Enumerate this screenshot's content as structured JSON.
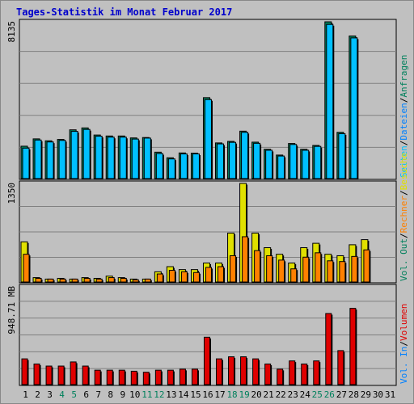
{
  "title": "Tages-Statistik im Monat Februar 2017",
  "colors": {
    "background": "#c0c0c0",
    "title": "#0000cc",
    "anfragen": "#00805c",
    "dateien": "#0080ff",
    "seiten": "#00c0ff",
    "besuche": "#e0e000",
    "rechner": "#ff8000",
    "vol_out": "#00805c",
    "vol_in": "#0080ff",
    "volumen": "#e00000",
    "weekend_label": "#00805c"
  },
  "chart_data": [
    {
      "type": "bar",
      "name": "top",
      "ymax_label": "8135",
      "ylim": [
        0,
        8135
      ],
      "x": [
        "1",
        "2",
        "3",
        "4",
        "5",
        "6",
        "7",
        "8",
        "9",
        "10",
        "11",
        "12",
        "13",
        "14",
        "15",
        "16",
        "17",
        "18",
        "19",
        "20",
        "21",
        "22",
        "23",
        "24",
        "25",
        "26",
        "27",
        "28",
        "29",
        "30",
        "31"
      ],
      "weekend_days": [
        "4",
        "5",
        "11",
        "12",
        "18",
        "19",
        "25",
        "26"
      ],
      "legend": [
        "Anfragen",
        "Dateien",
        "Seiten"
      ],
      "series": [
        {
          "name": "Anfragen",
          "values": [
            1680,
            2060,
            1960,
            2030,
            2530,
            2630,
            2260,
            2210,
            2210,
            2110,
            2130,
            1370,
            1080,
            1330,
            1320,
            4200,
            1850,
            1930,
            2460,
            1890,
            1520,
            1220,
            1820,
            1520,
            1720,
            8135,
            2400,
            7400,
            0,
            0,
            0
          ]
        },
        {
          "name": "Dateien",
          "values": [
            1680,
            2060,
            1960,
            2030,
            2530,
            2630,
            2260,
            2210,
            2210,
            2110,
            2130,
            1370,
            1080,
            1330,
            1320,
            4200,
            1850,
            1930,
            2460,
            1890,
            1520,
            1220,
            1820,
            1520,
            1720,
            8135,
            2400,
            7400,
            0,
            0,
            0
          ]
        },
        {
          "name": "Seiten",
          "values": [
            1580,
            2000,
            1900,
            1980,
            2450,
            2550,
            2200,
            2150,
            2150,
            2050,
            2100,
            1300,
            1020,
            1280,
            1280,
            4100,
            1800,
            1880,
            2400,
            1830,
            1470,
            1170,
            1770,
            1470,
            1670,
            8000,
            2330,
            7300,
            0,
            0,
            0
          ]
        }
      ]
    },
    {
      "type": "bar",
      "name": "middle",
      "ymax_label": "1350",
      "ylim": [
        0,
        1350
      ],
      "legend": [
        "Besuche",
        "Rechner",
        "Vol. Out"
      ],
      "series": [
        {
          "name": "Besuche",
          "values": [
            550,
            60,
            40,
            50,
            40,
            60,
            50,
            80,
            60,
            40,
            40,
            140,
            210,
            170,
            170,
            260,
            260,
            670,
            1350,
            670,
            470,
            380,
            260,
            470,
            530,
            380,
            360,
            510,
            580,
            0,
            0
          ]
        },
        {
          "name": "Rechner",
          "values": [
            380,
            50,
            40,
            40,
            40,
            50,
            40,
            60,
            50,
            30,
            40,
            110,
            160,
            140,
            130,
            200,
            210,
            360,
            620,
            430,
            360,
            300,
            180,
            340,
            400,
            290,
            280,
            350,
            440,
            0,
            0
          ]
        },
        {
          "name": "Vol. Out",
          "values": [
            0,
            0,
            0,
            0,
            0,
            0,
            0,
            0,
            0,
            0,
            0,
            0,
            0,
            0,
            0,
            0,
            0,
            0,
            0,
            0,
            0,
            0,
            0,
            0,
            0,
            0,
            0,
            0,
            0,
            0,
            0
          ]
        }
      ]
    },
    {
      "type": "bar",
      "name": "bottom",
      "ymax_label": "948.71 MB",
      "ylim": [
        0,
        948.71
      ],
      "legend": [
        "Volumen",
        "Vol. In"
      ],
      "series": [
        {
          "name": "Volumen",
          "values": [
            250,
            200,
            180,
            180,
            220,
            180,
            140,
            140,
            140,
            130,
            120,
            140,
            140,
            150,
            150,
            460,
            250,
            270,
            270,
            250,
            200,
            150,
            230,
            200,
            230,
            690,
            330,
            740,
            0,
            0,
            0
          ]
        },
        {
          "name": "Vol. In",
          "values": [
            0,
            0,
            0,
            0,
            0,
            0,
            0,
            0,
            0,
            0,
            0,
            0,
            0,
            0,
            0,
            0,
            0,
            0,
            0,
            0,
            0,
            0,
            0,
            0,
            0,
            0,
            0,
            0,
            0,
            0,
            0
          ]
        }
      ]
    }
  ]
}
